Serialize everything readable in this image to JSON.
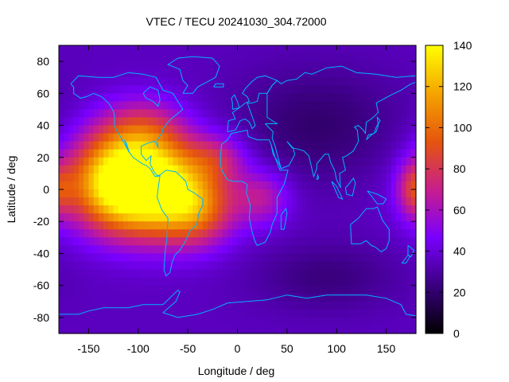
{
  "chart_data": {
    "type": "heatmap",
    "title": "VTEC / TECU 20241030_304.72000",
    "xlabel": "Longitude / deg",
    "ylabel": "Latitude / deg",
    "xlim": [
      -180,
      180
    ],
    "ylim": [
      -90,
      90
    ],
    "x_ticks": [
      -150,
      -100,
      -50,
      0,
      50,
      100,
      150
    ],
    "y_ticks": [
      -80,
      -60,
      -40,
      -20,
      0,
      20,
      40,
      60,
      80
    ],
    "colorbar": {
      "range": [
        0,
        140
      ],
      "ticks": [
        0,
        20,
        40,
        60,
        80,
        100,
        120,
        140
      ],
      "palette": [
        "#000000",
        "#3a007f",
        "#7a00ff",
        "#c81e8c",
        "#e6550d",
        "#f5a400",
        "#ffff00"
      ]
    },
    "overlay": "coastlines",
    "coastline_color": "#00b4ff",
    "features": [
      {
        "lon": -90,
        "lat": 0,
        "vtec": 125,
        "sigma_lon": 45,
        "sigma_lat": 20
      },
      {
        "lon": -130,
        "lat": 10,
        "vtec": 40,
        "sigma_lon": 30,
        "sigma_lat": 20
      },
      {
        "lon": -95,
        "lat": 35,
        "vtec": 40,
        "sigma_lon": 30,
        "sigma_lat": 15
      },
      {
        "lon": -40,
        "lat": -15,
        "vtec": 35,
        "sigma_lon": 25,
        "sigma_lat": 15
      },
      {
        "lon": 25,
        "lat": -5,
        "vtec": 28,
        "sigma_lon": 20,
        "sigma_lat": 12
      },
      {
        "lon": -20,
        "lat": 20,
        "vtec": 25,
        "sigma_lon": 20,
        "sigma_lat": 10
      },
      {
        "lon": 178,
        "lat": 0,
        "vtec": 35,
        "sigma_lon": 12,
        "sigma_lat": 12
      },
      {
        "lon": 80,
        "lat": 40,
        "vtec": -15,
        "sigma_lon": 60,
        "sigma_lat": 25
      },
      {
        "lon": 90,
        "lat": -55,
        "vtec": -12,
        "sigma_lon": 50,
        "sigma_lat": 15
      }
    ],
    "background_vtec": 35
  }
}
